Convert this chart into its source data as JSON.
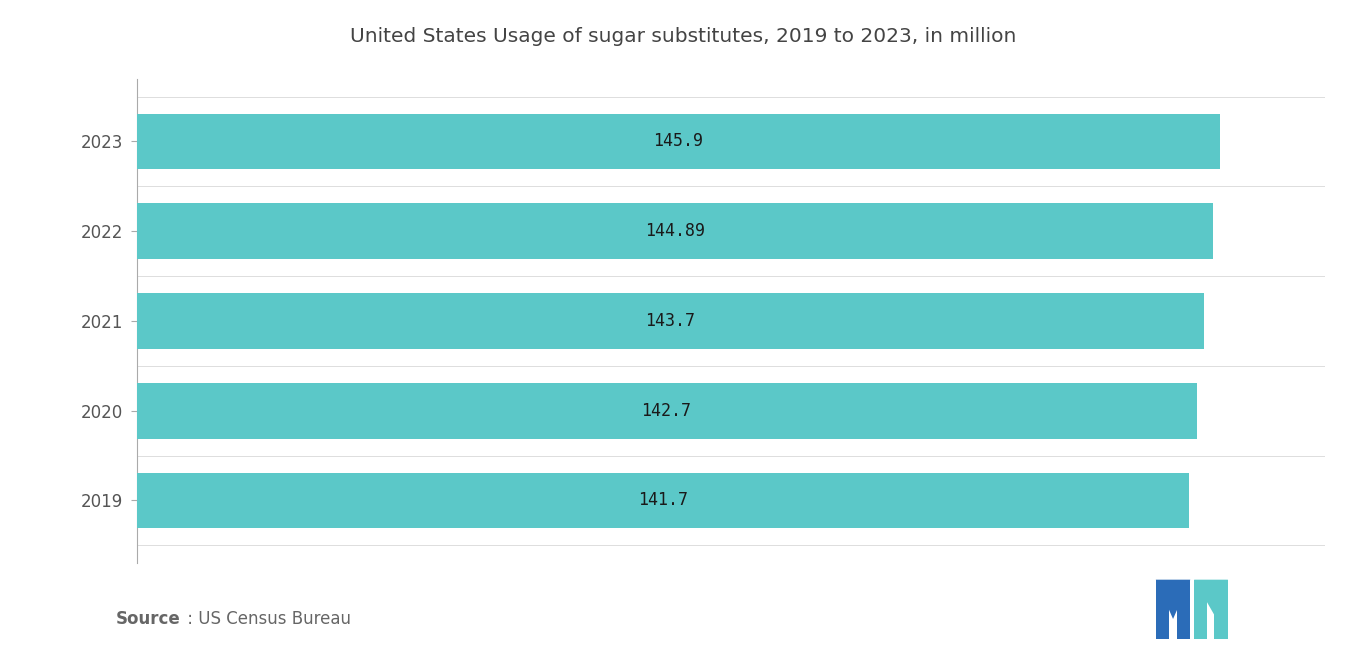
{
  "title": "United States Usage of sugar substitutes, 2019 to 2023, in million",
  "years": [
    "2023",
    "2022",
    "2021",
    "2020",
    "2019"
  ],
  "values": [
    145.9,
    144.89,
    143.7,
    142.7,
    141.7
  ],
  "bar_color": "#5BC8C8",
  "label_color": "#1a1a1a",
  "title_color": "#444444",
  "source_bold": "Source",
  "source_rest": " : US Census Bureau",
  "background_color": "#ffffff",
  "bar_height": 0.62,
  "xlim": [
    0,
    160
  ],
  "title_fontsize": 14.5,
  "label_fontsize": 12,
  "tick_fontsize": 12,
  "source_fontsize": 12,
  "logo_blue": "#2B6CB8",
  "logo_teal": "#5BC8C8"
}
